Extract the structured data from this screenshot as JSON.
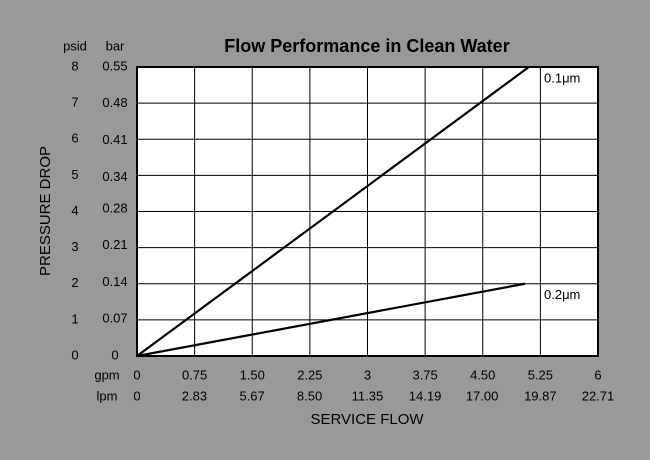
{
  "chart_data": {
    "type": "line",
    "title": "Flow Performance in Clean Water",
    "ylabel": "PRESSURE DROP",
    "xlabel": "SERVICE FLOW",
    "y_unit": "psid",
    "y2_unit": "bar",
    "x_unit": "gpm",
    "x2_unit": "lpm",
    "xlim": [
      0,
      6
    ],
    "xticks": [
      0,
      0.75,
      {
        "value": 1.5,
        "label": "1.50"
      },
      2.25,
      3,
      3.75,
      {
        "value": 4.5,
        "label": "4.50"
      },
      5.25,
      6
    ],
    "x2lim": [
      0,
      22.71
    ],
    "x2ticks": [
      0,
      2.83,
      5.67,
      {
        "value": 8.5,
        "label": "8.50"
      },
      11.35,
      14.19,
      {
        "value": 17,
        "label": "17.00"
      },
      19.87,
      22.71
    ],
    "ylim": [
      0,
      8
    ],
    "yticks": [
      0,
      1,
      2,
      3,
      4,
      5,
      6,
      7,
      8
    ],
    "y2lim": [
      0,
      0.55
    ],
    "y2ticks": [
      0,
      0.07,
      0.14,
      0.21,
      0.28,
      0.34,
      0.41,
      0.48,
      0.55
    ],
    "grid": true,
    "series": [
      {
        "name": "0.1μm",
        "color": "#000000",
        "x": [
          0,
          5.1
        ],
        "values": [
          0,
          8
        ]
      },
      {
        "name": "0.2μm",
        "color": "#000000",
        "x": [
          0,
          5.05
        ],
        "values": [
          0,
          2
        ]
      }
    ]
  }
}
